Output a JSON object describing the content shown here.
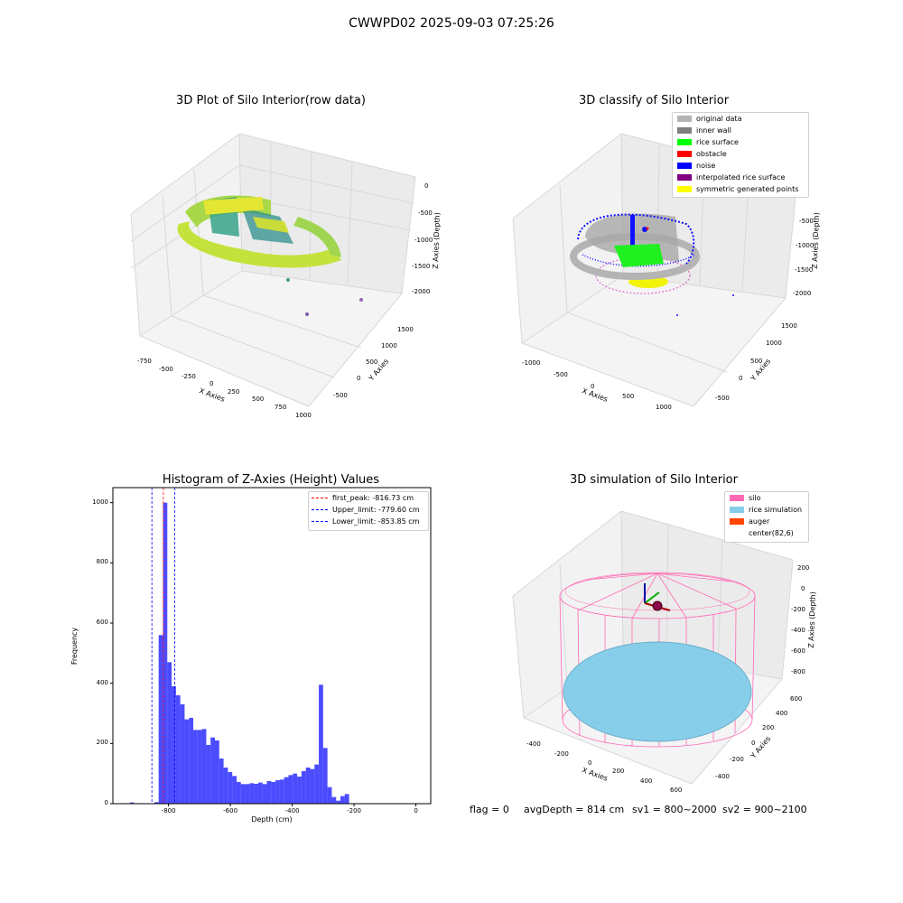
{
  "suptitle": "CWWPD02 2025-09-03 07:25:26",
  "panels": {
    "raw": {
      "title": "3D Plot of Silo Interior(row data)",
      "xlabel": "X Axies",
      "ylabel": "Y Axies",
      "zlabel": "Z Axies (Depth)",
      "xticks": [
        "-750",
        "-500",
        "-250",
        "0",
        "250",
        "500",
        "750",
        "1000"
      ],
      "yticks": [
        "1500",
        "1000",
        "500",
        "0",
        "-500"
      ],
      "zticks": [
        "0",
        "-500",
        "-1000",
        "-1500",
        "-2000"
      ]
    },
    "classify": {
      "title": "3D classify of Silo Interior",
      "xlabel": "X Axies",
      "ylabel": "Y Axies",
      "zlabel": "Z Axies (Depth)",
      "xticks": [
        "-1000",
        "-500",
        "0",
        "500",
        "1000"
      ],
      "yticks": [
        "1500",
        "1000",
        "500",
        "0",
        "-500"
      ],
      "zticks": [
        "-500",
        "-1000",
        "-1500",
        "-2000"
      ],
      "legend": [
        {
          "label": "original data",
          "color": "#b4b4b4"
        },
        {
          "label": "inner wall",
          "color": "#808080"
        },
        {
          "label": "rice surface",
          "color": "#00ff00"
        },
        {
          "label": "obstacle",
          "color": "#ff0000"
        },
        {
          "label": "noise",
          "color": "#0000ff"
        },
        {
          "label": "interpolated rice surface",
          "color": "#800080"
        },
        {
          "label": "symmetric generated points",
          "color": "#ffff00"
        }
      ]
    },
    "simulation": {
      "title": "3D simulation of Silo Interior",
      "xlabel": "X Axies",
      "ylabel": "Y Axies",
      "zlabel": "Z Axies (Depth)",
      "xticks": [
        "-400",
        "-200",
        "0",
        "200",
        "400",
        "600"
      ],
      "yticks": [
        "600",
        "400",
        "200",
        "0",
        "-200",
        "-400"
      ],
      "zticks": [
        "200",
        "0",
        "-200",
        "-400",
        "-600",
        "-800"
      ],
      "legend": [
        {
          "label": "silo",
          "color": "#ff69b4"
        },
        {
          "label": "rice simulation",
          "color": "#87ceeb"
        },
        {
          "label": "auger",
          "color": "#ff4500"
        },
        {
          "label": "center(82,6)",
          "color": "#ffffff"
        }
      ]
    }
  },
  "chart_data": {
    "type": "bar",
    "title": "Histogram of Z-Axies (Height) Values",
    "xlabel": "Depth (cm)",
    "ylabel": "Frequency",
    "xlim": [
      -980,
      48
    ],
    "ylim": [
      0,
      1050
    ],
    "xticks": [
      -800,
      -600,
      -400,
      -200,
      0
    ],
    "yticks": [
      0,
      200,
      400,
      600,
      800,
      1000
    ],
    "bar_color": "#0000ff",
    "bin_width": 14,
    "bins": [
      {
        "x": -925,
        "y": 4
      },
      {
        "x": -846,
        "y": 5
      },
      {
        "x": -832,
        "y": 560
      },
      {
        "x": -818,
        "y": 1000
      },
      {
        "x": -804,
        "y": 470
      },
      {
        "x": -790,
        "y": 390
      },
      {
        "x": -776,
        "y": 360
      },
      {
        "x": -762,
        "y": 330
      },
      {
        "x": -748,
        "y": 280
      },
      {
        "x": -734,
        "y": 285
      },
      {
        "x": -720,
        "y": 245
      },
      {
        "x": -706,
        "y": 245
      },
      {
        "x": -692,
        "y": 248
      },
      {
        "x": -678,
        "y": 195
      },
      {
        "x": -664,
        "y": 220
      },
      {
        "x": -650,
        "y": 210
      },
      {
        "x": -636,
        "y": 150
      },
      {
        "x": -622,
        "y": 120
      },
      {
        "x": -608,
        "y": 105
      },
      {
        "x": -594,
        "y": 92
      },
      {
        "x": -580,
        "y": 72
      },
      {
        "x": -566,
        "y": 65
      },
      {
        "x": -552,
        "y": 65
      },
      {
        "x": -538,
        "y": 68
      },
      {
        "x": -524,
        "y": 66
      },
      {
        "x": -510,
        "y": 70
      },
      {
        "x": -496,
        "y": 65
      },
      {
        "x": -482,
        "y": 75
      },
      {
        "x": -468,
        "y": 72
      },
      {
        "x": -454,
        "y": 78
      },
      {
        "x": -440,
        "y": 80
      },
      {
        "x": -426,
        "y": 88
      },
      {
        "x": -412,
        "y": 95
      },
      {
        "x": -398,
        "y": 100
      },
      {
        "x": -384,
        "y": 90
      },
      {
        "x": -370,
        "y": 108
      },
      {
        "x": -356,
        "y": 120
      },
      {
        "x": -342,
        "y": 115
      },
      {
        "x": -328,
        "y": 130
      },
      {
        "x": -314,
        "y": 395
      },
      {
        "x": -300,
        "y": 185
      },
      {
        "x": -286,
        "y": 55
      },
      {
        "x": -272,
        "y": 22
      },
      {
        "x": -258,
        "y": 10
      },
      {
        "x": -244,
        "y": 25
      },
      {
        "x": -230,
        "y": 32
      }
    ],
    "vlines": [
      {
        "label": "first_peak: -816.73 cm",
        "x": -816.73,
        "color": "#ff0000"
      },
      {
        "label": "Upper_limit: -779.60 cm",
        "x": -779.6,
        "color": "#0000ff"
      },
      {
        "label": "Lower_limit: -853.85 cm",
        "x": -853.85,
        "color": "#0000ff"
      }
    ]
  },
  "footer": {
    "flag": "flag = 0",
    "avg": "avgDepth = 814 cm",
    "sv1": "sv1 = 800~2000",
    "sv2": "sv2 = 900~2100"
  }
}
